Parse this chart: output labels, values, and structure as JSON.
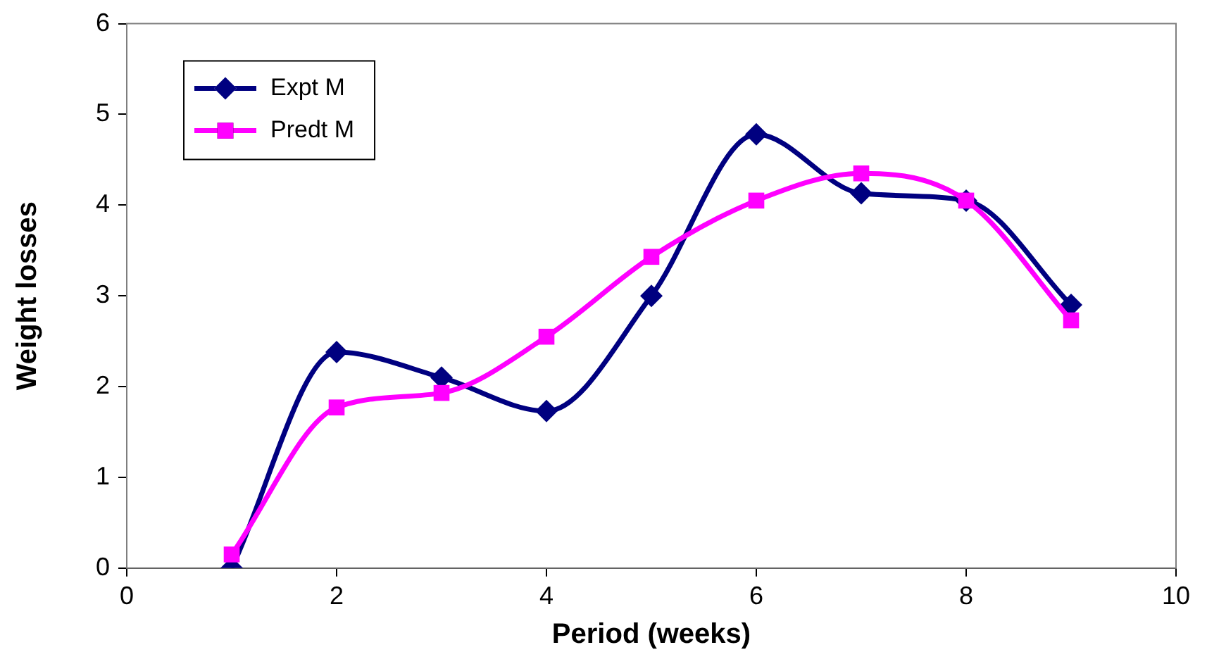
{
  "chart_data": {
    "type": "line",
    "xlabel": "Period (weeks)",
    "ylabel": "Weight losses",
    "x": [
      1,
      2,
      3,
      4,
      5,
      6,
      7,
      8,
      9
    ],
    "series": [
      {
        "name": "Expt M",
        "color": "#000080",
        "marker": "diamond",
        "values": [
          0,
          2.38,
          2.1,
          1.73,
          3.0,
          4.78,
          4.13,
          4.05,
          2.9
        ]
      },
      {
        "name": "Predt M",
        "color": "#ff00ff",
        "marker": "square",
        "values": [
          0.15,
          1.77,
          1.93,
          2.55,
          3.43,
          4.05,
          4.35,
          4.05,
          2.73
        ]
      }
    ],
    "xlim": [
      0,
      10
    ],
    "xticks": [
      0,
      2,
      4,
      6,
      8,
      10
    ],
    "ylim": [
      0,
      6
    ],
    "yticks": [
      0,
      1,
      2,
      3,
      4,
      5,
      6
    ],
    "grid": false,
    "legend": "top left",
    "line_style": "solid"
  }
}
